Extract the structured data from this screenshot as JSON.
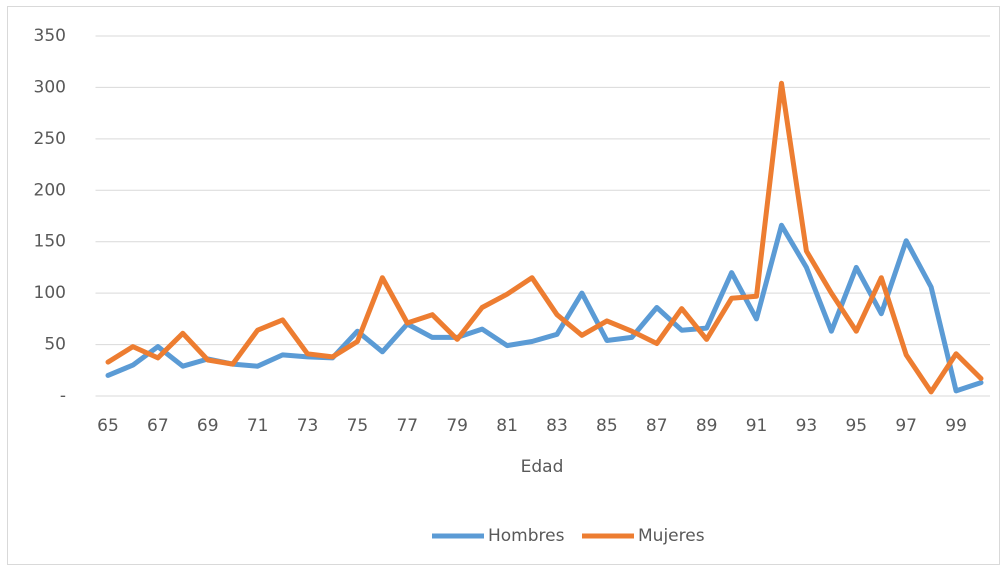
{
  "chart_data": {
    "type": "line",
    "x_label": "Edad",
    "categories": [
      "65",
      null,
      "67",
      null,
      "69",
      null,
      "71",
      null,
      "73",
      null,
      "75",
      null,
      "77",
      null,
      "79",
      null,
      "81",
      null,
      "83",
      null,
      "85",
      null,
      "87",
      null,
      "89",
      null,
      "91",
      null,
      "93",
      null,
      "95",
      null,
      "97",
      null,
      "99",
      null
    ],
    "series": [
      {
        "name": "Hombres",
        "color": "#5b9bd5",
        "values": [
          20,
          30,
          48,
          29,
          36,
          31,
          29,
          40,
          38,
          37,
          63,
          43,
          70,
          57,
          57,
          65,
          49,
          53,
          60,
          100,
          54,
          57,
          86,
          64,
          66,
          120,
          75,
          166,
          125,
          63,
          125,
          80,
          151,
          106,
          5,
          13
        ]
      },
      {
        "name": "Mujeres",
        "color": "#ed7d31",
        "values": [
          33,
          48,
          37,
          61,
          35,
          31,
          64,
          74,
          41,
          38,
          53,
          115,
          71,
          79,
          55,
          86,
          99,
          115,
          79,
          59,
          73,
          63,
          51,
          85,
          55,
          95,
          97,
          304,
          141,
          100,
          63,
          115,
          40,
          4,
          41,
          17
        ]
      }
    ],
    "ylim": [
      0,
      350
    ],
    "yticks": [
      {
        "value": 0,
        "label": "-"
      },
      50,
      100,
      150,
      200,
      250,
      300,
      350
    ],
    "grid": true,
    "legend": "bottom"
  }
}
